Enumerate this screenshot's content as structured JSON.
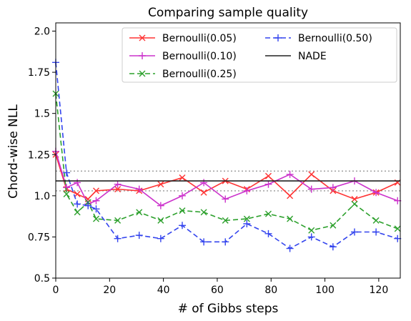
{
  "chart_data": {
    "type": "line",
    "title": "Comparing sample quality",
    "xlabel": "# of Gibbs steps",
    "ylabel": "Chord-wise NLL",
    "xlim": [
      0,
      128
    ],
    "ylim": [
      0.5,
      2.05
    ],
    "xticks": [
      0,
      20,
      40,
      60,
      80,
      100,
      120
    ],
    "yticks": [
      0.5,
      0.75,
      1.0,
      1.25,
      1.5,
      1.75,
      2.0
    ],
    "ytick_labels": [
      "0.5",
      "0.75",
      "1.0",
      "1.25",
      "1.5",
      "1.75",
      "2.0"
    ],
    "grid": false,
    "legend": {
      "position": "top-right",
      "columns": 2
    },
    "series": [
      {
        "name": "Bernoulli(0.05)",
        "color": "#ff3333",
        "linestyle": "solid",
        "marker": "x",
        "x": [
          0,
          4,
          8,
          12,
          15,
          23,
          31,
          39,
          47,
          55,
          63,
          71,
          79,
          87,
          95,
          103,
          111,
          119,
          127
        ],
        "y": [
          1.25,
          1.04,
          1.01,
          0.98,
          1.03,
          1.04,
          1.03,
          1.07,
          1.11,
          1.02,
          1.09,
          1.04,
          1.12,
          1.0,
          1.13,
          1.03,
          0.98,
          1.02,
          1.08
        ]
      },
      {
        "name": "Bernoulli(0.10)",
        "color": "#cc33cc",
        "linestyle": "solid",
        "marker": "+",
        "x": [
          0,
          4,
          8,
          12,
          15,
          23,
          31,
          39,
          47,
          55,
          63,
          71,
          79,
          87,
          95,
          103,
          111,
          119,
          127
        ],
        "y": [
          1.27,
          1.05,
          1.08,
          0.95,
          0.97,
          1.07,
          1.04,
          0.94,
          1.0,
          1.08,
          0.98,
          1.03,
          1.07,
          1.13,
          1.04,
          1.05,
          1.09,
          1.02,
          0.97
        ]
      },
      {
        "name": "Bernoulli(0.25)",
        "color": "#2ca02c",
        "linestyle": "dashed",
        "marker": "x",
        "x": [
          0,
          4,
          8,
          12,
          15,
          23,
          31,
          39,
          47,
          55,
          63,
          71,
          79,
          87,
          95,
          103,
          111,
          119,
          127
        ],
        "y": [
          1.62,
          1.01,
          0.9,
          0.96,
          0.86,
          0.85,
          0.9,
          0.85,
          0.91,
          0.9,
          0.85,
          0.86,
          0.89,
          0.86,
          0.79,
          0.82,
          0.95,
          0.85,
          0.8
        ]
      },
      {
        "name": "Bernoulli(0.50)",
        "color": "#3344ee",
        "linestyle": "dashed",
        "marker": "+",
        "x": [
          0,
          4,
          8,
          12,
          15,
          23,
          31,
          39,
          47,
          55,
          63,
          71,
          79,
          87,
          95,
          103,
          111,
          119,
          127
        ],
        "y": [
          1.81,
          1.14,
          0.95,
          0.94,
          0.92,
          0.74,
          0.76,
          0.74,
          0.82,
          0.72,
          0.72,
          0.83,
          0.77,
          0.68,
          0.75,
          0.69,
          0.78,
          0.78,
          0.74
        ]
      },
      {
        "name": "NADE",
        "color": "#222222",
        "linestyle": "solid",
        "marker": "none",
        "x": [
          0,
          128
        ],
        "y": [
          1.09,
          1.09
        ]
      }
    ],
    "reference_lines": [
      {
        "y": 1.15,
        "color": "#999999",
        "linestyle": "dotted"
      },
      {
        "y": 1.03,
        "color": "#999999",
        "linestyle": "dotted"
      }
    ]
  }
}
